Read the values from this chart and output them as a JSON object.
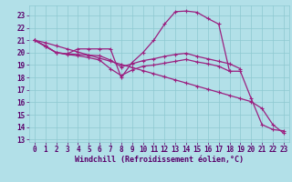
{
  "background_color": "#b2e0e8",
  "grid_color": "#8dc8d0",
  "line_color": "#9b2080",
  "xlim": [
    -0.5,
    23.5
  ],
  "ylim": [
    12.8,
    23.8
  ],
  "yticks": [
    13,
    14,
    15,
    16,
    17,
    18,
    19,
    20,
    21,
    22,
    23
  ],
  "xticks": [
    0,
    1,
    2,
    3,
    4,
    5,
    6,
    7,
    8,
    9,
    10,
    11,
    12,
    13,
    14,
    15,
    16,
    17,
    18,
    19,
    20,
    21,
    22,
    23
  ],
  "xlabel": "Windchill (Refroidissement éolien,°C)",
  "line1_x": [
    0,
    1,
    2,
    3,
    4,
    5,
    6,
    7,
    8,
    9,
    10,
    11,
    12,
    13,
    14,
    15,
    16,
    17,
    18,
    19,
    20,
    21,
    22,
    23
  ],
  "line1_y": [
    21.0,
    20.55,
    20.0,
    19.9,
    20.3,
    20.3,
    20.3,
    20.3,
    18.0,
    19.2,
    20.0,
    21.0,
    22.3,
    23.3,
    23.35,
    23.25,
    22.75,
    22.3,
    18.5,
    18.5,
    16.3,
    14.2,
    13.8,
    13.7
  ],
  "line2_x": [
    0,
    1,
    2,
    3,
    4,
    5,
    6,
    7,
    8,
    9,
    10,
    11,
    12,
    13,
    14,
    15,
    16,
    17,
    18,
    19
  ],
  "line2_y": [
    21.0,
    20.5,
    20.0,
    19.9,
    19.85,
    19.8,
    19.75,
    19.4,
    18.85,
    19.1,
    19.35,
    19.5,
    19.7,
    19.85,
    19.95,
    19.7,
    19.5,
    19.3,
    19.1,
    18.7
  ],
  "line3_x": [
    0,
    1,
    2,
    3,
    4,
    5,
    6,
    7,
    8,
    9,
    10,
    11,
    12,
    13,
    14,
    15,
    16,
    17,
    18
  ],
  "line3_y": [
    21.0,
    20.5,
    20.0,
    19.85,
    19.75,
    19.6,
    19.4,
    18.7,
    18.15,
    18.6,
    18.9,
    19.0,
    19.15,
    19.3,
    19.45,
    19.25,
    19.1,
    18.9,
    18.5
  ],
  "line4_x": [
    0,
    1,
    2,
    3,
    4,
    5,
    6,
    7,
    8,
    9,
    10,
    11,
    12,
    13,
    14,
    15,
    16,
    17,
    18,
    19,
    20,
    21,
    22,
    23
  ],
  "line4_y": [
    21.0,
    20.8,
    20.55,
    20.3,
    20.05,
    19.8,
    19.55,
    19.3,
    19.05,
    18.8,
    18.55,
    18.3,
    18.05,
    17.8,
    17.55,
    17.3,
    17.05,
    16.8,
    16.55,
    16.3,
    16.05,
    15.5,
    14.2,
    13.5
  ],
  "tickfontsize": 5.5,
  "xlabelfontsize": 6.0
}
